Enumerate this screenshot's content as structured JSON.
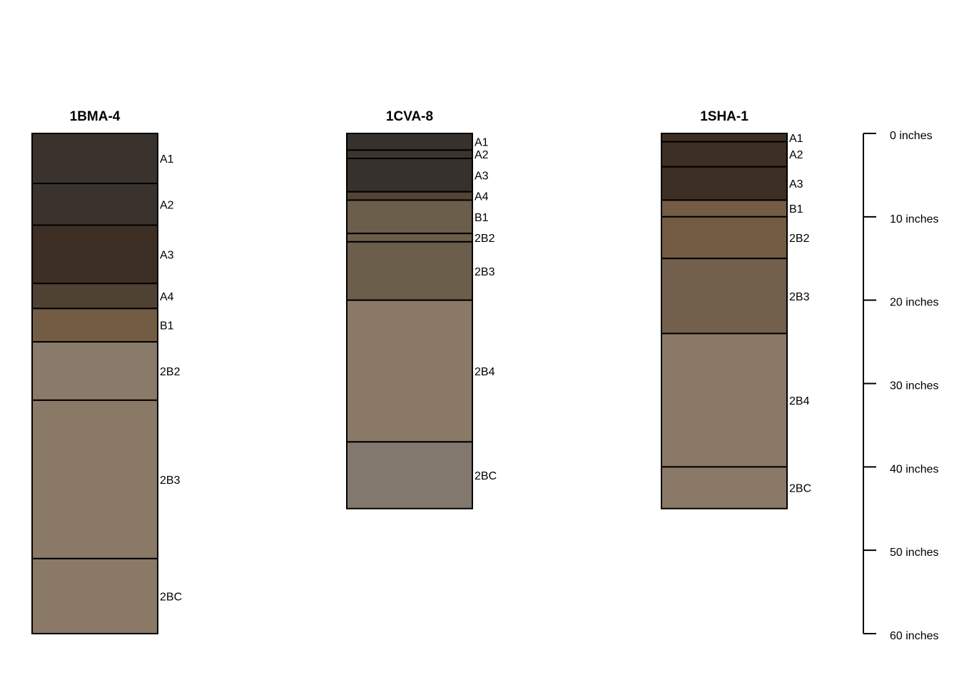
{
  "chart_data": {
    "type": "soil-profile",
    "depth_unit": "inches",
    "depth_range": [
      0,
      60
    ],
    "depth_axis": {
      "ticks": [
        0,
        10,
        20,
        30,
        40,
        50,
        60
      ],
      "tick_labels": [
        "0 inches",
        "10 inches",
        "20 inches",
        "30 inches",
        "40 inches",
        "50 inches",
        "60 inches"
      ]
    },
    "profiles": [
      {
        "id": "1BMA-4",
        "horizons": [
          {
            "name": "A1",
            "top": 0,
            "bottom": 6,
            "color": "#3a322d"
          },
          {
            "name": "A2",
            "top": 6,
            "bottom": 11,
            "color": "#3a322d"
          },
          {
            "name": "A3",
            "top": 11,
            "bottom": 18,
            "color": "#3d2f24"
          },
          {
            "name": "A4",
            "top": 18,
            "bottom": 21,
            "color": "#4f4233"
          },
          {
            "name": "B1",
            "top": 21,
            "bottom": 25,
            "color": "#725c43"
          },
          {
            "name": "2B2",
            "top": 25,
            "bottom": 32,
            "color": "#8a7a69"
          },
          {
            "name": "2B3",
            "top": 32,
            "bottom": 51,
            "color": "#8a7966"
          },
          {
            "name": "2BC",
            "top": 51,
            "bottom": 60,
            "color": "#8a7966"
          }
        ]
      },
      {
        "id": "1CVA-8",
        "horizons": [
          {
            "name": "A1",
            "top": 0,
            "bottom": 2,
            "color": "#36312c"
          },
          {
            "name": "A2",
            "top": 2,
            "bottom": 3,
            "color": "#3a342e"
          },
          {
            "name": "A3",
            "top": 3,
            "bottom": 7,
            "color": "#36312c"
          },
          {
            "name": "A4",
            "top": 7,
            "bottom": 8,
            "color": "#524537"
          },
          {
            "name": "B1",
            "top": 8,
            "bottom": 12,
            "color": "#6b5e4a"
          },
          {
            "name": "2B2",
            "top": 12,
            "bottom": 13,
            "color": "#6b5e4a"
          },
          {
            "name": "2B3",
            "top": 13,
            "bottom": 20,
            "color": "#6b5e4a"
          },
          {
            "name": "2B4",
            "top": 20,
            "bottom": 37,
            "color": "#8a7966"
          },
          {
            "name": "2BC",
            "top": 37,
            "bottom": 45,
            "color": "#82786d"
          }
        ]
      },
      {
        "id": "1SHA-1",
        "horizons": [
          {
            "name": "A1",
            "top": 0,
            "bottom": 1,
            "color": "#3d2f24"
          },
          {
            "name": "A2",
            "top": 1,
            "bottom": 4,
            "color": "#3d2f24"
          },
          {
            "name": "A3",
            "top": 4,
            "bottom": 8,
            "color": "#3d2f24"
          },
          {
            "name": "B1",
            "top": 8,
            "bottom": 10,
            "color": "#735c43"
          },
          {
            "name": "2B2",
            "top": 10,
            "bottom": 15,
            "color": "#735c41"
          },
          {
            "name": "2B3",
            "top": 15,
            "bottom": 24,
            "color": "#72604d"
          },
          {
            "name": "2B4",
            "top": 24,
            "bottom": 40,
            "color": "#8a7966"
          },
          {
            "name": "2BC",
            "top": 40,
            "bottom": 45,
            "color": "#8a7966"
          }
        ]
      }
    ]
  }
}
